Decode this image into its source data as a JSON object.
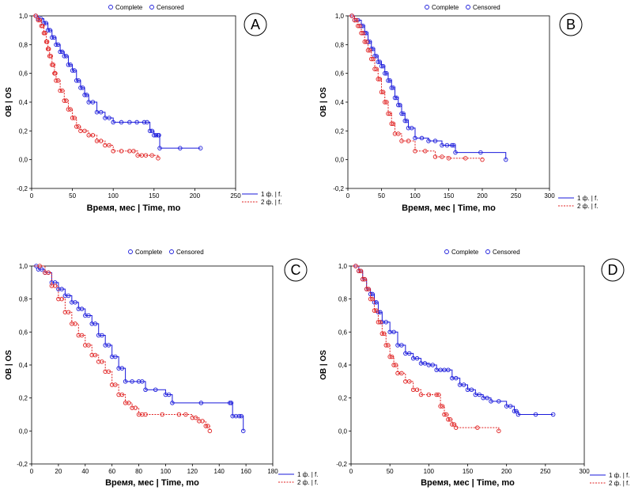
{
  "legend_labels": {
    "complete": "Complete",
    "censored": "Censored"
  },
  "colors": {
    "group1": "#1a1adb",
    "group2": "#e02020",
    "axis": "#000000"
  },
  "chart_data": [
    {
      "panel": "A",
      "type": "line",
      "xlabel": "Время, мес | Time, mo",
      "ylabel": "ОВ | OS",
      "xlim": [
        0,
        250
      ],
      "ylim": [
        -0.2,
        1.0
      ],
      "xticks": [
        0,
        50,
        100,
        150,
        200,
        250
      ],
      "yticks": [
        "-0,2",
        "0,0",
        "0,2",
        "0,4",
        "0,6",
        "0,8",
        "1,0"
      ],
      "series": [
        {
          "name": "1 ф. | f.",
          "style": "solid",
          "x": [
            2,
            8,
            15,
            20,
            25,
            30,
            35,
            40,
            45,
            50,
            55,
            60,
            65,
            70,
            80,
            90,
            100,
            120,
            138,
            145,
            150,
            155,
            157,
            207
          ],
          "y": [
            1.0,
            0.98,
            0.95,
            0.9,
            0.85,
            0.8,
            0.75,
            0.72,
            0.66,
            0.62,
            0.55,
            0.5,
            0.45,
            0.4,
            0.33,
            0.29,
            0.26,
            0.26,
            0.26,
            0.2,
            0.17,
            0.17,
            0.08,
            0.08
          ]
        },
        {
          "name": "2 ф. | f.",
          "style": "dashed",
          "x": [
            2,
            8,
            12,
            15,
            18,
            20,
            22,
            25,
            28,
            30,
            35,
            40,
            45,
            50,
            55,
            60,
            70,
            80,
            90,
            100,
            120,
            130,
            140,
            155
          ],
          "y": [
            1.0,
            0.97,
            0.93,
            0.88,
            0.82,
            0.77,
            0.72,
            0.66,
            0.6,
            0.55,
            0.48,
            0.41,
            0.35,
            0.29,
            0.23,
            0.2,
            0.17,
            0.13,
            0.1,
            0.06,
            0.06,
            0.03,
            0.03,
            0.01
          ]
        }
      ]
    },
    {
      "panel": "B",
      "type": "line",
      "xlabel": "Время, мес | Time, mo",
      "ylabel": "ОВ | OS",
      "xlim": [
        0,
        300
      ],
      "ylim": [
        -0.2,
        1.0
      ],
      "xticks": [
        0,
        50,
        100,
        150,
        200,
        250,
        300
      ],
      "yticks": [
        "-0,2",
        "0,0",
        "0,2",
        "0,4",
        "0,6",
        "0,8",
        "1,0"
      ],
      "series": [
        {
          "name": "1 ф. | f.",
          "style": "solid",
          "x": [
            2,
            10,
            20,
            25,
            30,
            35,
            40,
            45,
            50,
            55,
            60,
            65,
            70,
            75,
            80,
            85,
            90,
            100,
            120,
            140,
            155,
            160,
            235
          ],
          "y": [
            1.0,
            0.97,
            0.93,
            0.88,
            0.82,
            0.77,
            0.72,
            0.68,
            0.65,
            0.6,
            0.55,
            0.5,
            0.43,
            0.38,
            0.32,
            0.27,
            0.22,
            0.15,
            0.13,
            0.1,
            0.1,
            0.05,
            0.0
          ]
        },
        {
          "name": "2 ф. | f.",
          "style": "dashed",
          "x": [
            2,
            10,
            15,
            20,
            25,
            30,
            35,
            40,
            45,
            50,
            55,
            60,
            65,
            70,
            80,
            100,
            130,
            150,
            200
          ],
          "y": [
            1.0,
            0.97,
            0.93,
            0.88,
            0.82,
            0.76,
            0.7,
            0.63,
            0.56,
            0.47,
            0.4,
            0.32,
            0.25,
            0.18,
            0.13,
            0.06,
            0.02,
            0.01,
            0.0
          ]
        }
      ]
    },
    {
      "panel": "C",
      "type": "line",
      "xlabel": "Время, мес | Time, mo",
      "ylabel": "ОВ | OS",
      "xlim": [
        0,
        180
      ],
      "ylim": [
        -0.2,
        1.0
      ],
      "xticks": [
        0,
        20,
        40,
        60,
        80,
        100,
        120,
        140,
        160,
        180
      ],
      "yticks": [
        "-0,2",
        "0,0",
        "0,2",
        "0,4",
        "0,6",
        "0,8",
        "1,0"
      ],
      "series": [
        {
          "name": "1 ф. | f.",
          "style": "solid",
          "x": [
            2,
            5,
            10,
            15,
            20,
            25,
            30,
            35,
            40,
            45,
            50,
            55,
            60,
            65,
            70,
            80,
            85,
            100,
            105,
            148,
            150,
            155,
            158
          ],
          "y": [
            1.0,
            0.98,
            0.96,
            0.9,
            0.86,
            0.82,
            0.78,
            0.74,
            0.7,
            0.65,
            0.58,
            0.52,
            0.45,
            0.38,
            0.3,
            0.3,
            0.25,
            0.22,
            0.17,
            0.17,
            0.09,
            0.09,
            0.0
          ]
        },
        {
          "name": "2 ф. | f.",
          "style": "dashed",
          "x": [
            2,
            10,
            15,
            20,
            25,
            30,
            35,
            40,
            45,
            50,
            55,
            60,
            65,
            70,
            75,
            80,
            85,
            110,
            120,
            125,
            130,
            133
          ],
          "y": [
            1.0,
            0.96,
            0.88,
            0.8,
            0.72,
            0.65,
            0.58,
            0.52,
            0.46,
            0.42,
            0.36,
            0.28,
            0.22,
            0.17,
            0.14,
            0.1,
            0.1,
            0.1,
            0.08,
            0.06,
            0.03,
            0.0
          ]
        }
      ]
    },
    {
      "panel": "D",
      "type": "line",
      "xlabel": "Время, мес | Time, mo",
      "ylabel": "ОВ | OS",
      "xlim": [
        0,
        300
      ],
      "ylim": [
        -0.2,
        1.0
      ],
      "xticks": [
        0,
        50,
        100,
        150,
        200,
        250,
        300
      ],
      "yticks": [
        "-0,2",
        "0,0",
        "0,2",
        "0,4",
        "0,6",
        "0,8",
        "1,0"
      ],
      "series": [
        {
          "name": "1 ф. | f.",
          "style": "solid",
          "x": [
            2,
            10,
            15,
            20,
            25,
            30,
            35,
            40,
            50,
            60,
            70,
            80,
            90,
            100,
            110,
            120,
            130,
            140,
            150,
            160,
            170,
            180,
            200,
            210,
            215,
            260
          ],
          "y": [
            1.0,
            0.97,
            0.92,
            0.86,
            0.83,
            0.78,
            0.72,
            0.66,
            0.6,
            0.52,
            0.47,
            0.44,
            0.41,
            0.4,
            0.37,
            0.37,
            0.32,
            0.28,
            0.25,
            0.22,
            0.2,
            0.18,
            0.15,
            0.12,
            0.1,
            0.1
          ]
        },
        {
          "name": "2 ф. | f.",
          "style": "dashed",
          "x": [
            2,
            10,
            15,
            20,
            25,
            30,
            35,
            40,
            45,
            50,
            55,
            60,
            70,
            80,
            90,
            110,
            115,
            120,
            125,
            130,
            135,
            190
          ],
          "y": [
            1.0,
            0.97,
            0.92,
            0.86,
            0.8,
            0.73,
            0.66,
            0.59,
            0.52,
            0.45,
            0.4,
            0.35,
            0.3,
            0.25,
            0.22,
            0.22,
            0.15,
            0.1,
            0.07,
            0.04,
            0.02,
            0.0
          ]
        }
      ]
    }
  ]
}
